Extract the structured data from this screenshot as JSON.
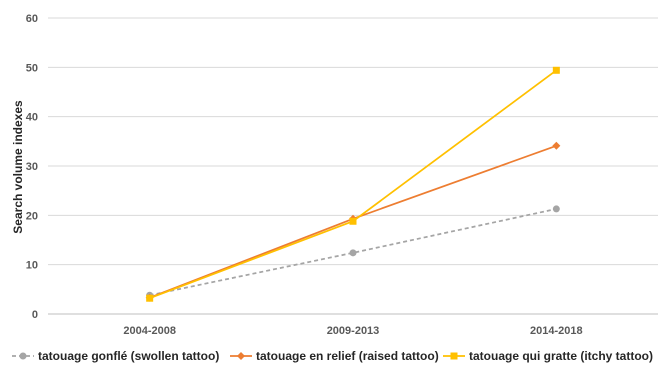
{
  "chart_data": {
    "type": "line",
    "title": "",
    "xlabel": "",
    "ylabel": "Search volume indexes",
    "categories": [
      "2004-2008",
      "2009-2013",
      "2014-2018"
    ],
    "ylim": [
      0,
      60
    ],
    "yticks": [
      0,
      10,
      20,
      30,
      40,
      50,
      60
    ],
    "grid": true,
    "legend_position": "bottom",
    "series": [
      {
        "name": "tatouage gonflé (swollen tattoo)",
        "values": [
          3.8,
          12.4,
          21.3
        ],
        "color": "#a5a5a5",
        "marker": "circle",
        "dash": true
      },
      {
        "name": "tatouage en relief (raised tattoo)",
        "values": [
          3.3,
          19.3,
          34.1
        ],
        "color": "#ed7d31",
        "marker": "diamond",
        "dash": false
      },
      {
        "name": "tatouage qui gratte (itchy tattoo)",
        "values": [
          3.2,
          18.8,
          49.4
        ],
        "color": "#ffc000",
        "marker": "square",
        "dash": false
      }
    ]
  }
}
